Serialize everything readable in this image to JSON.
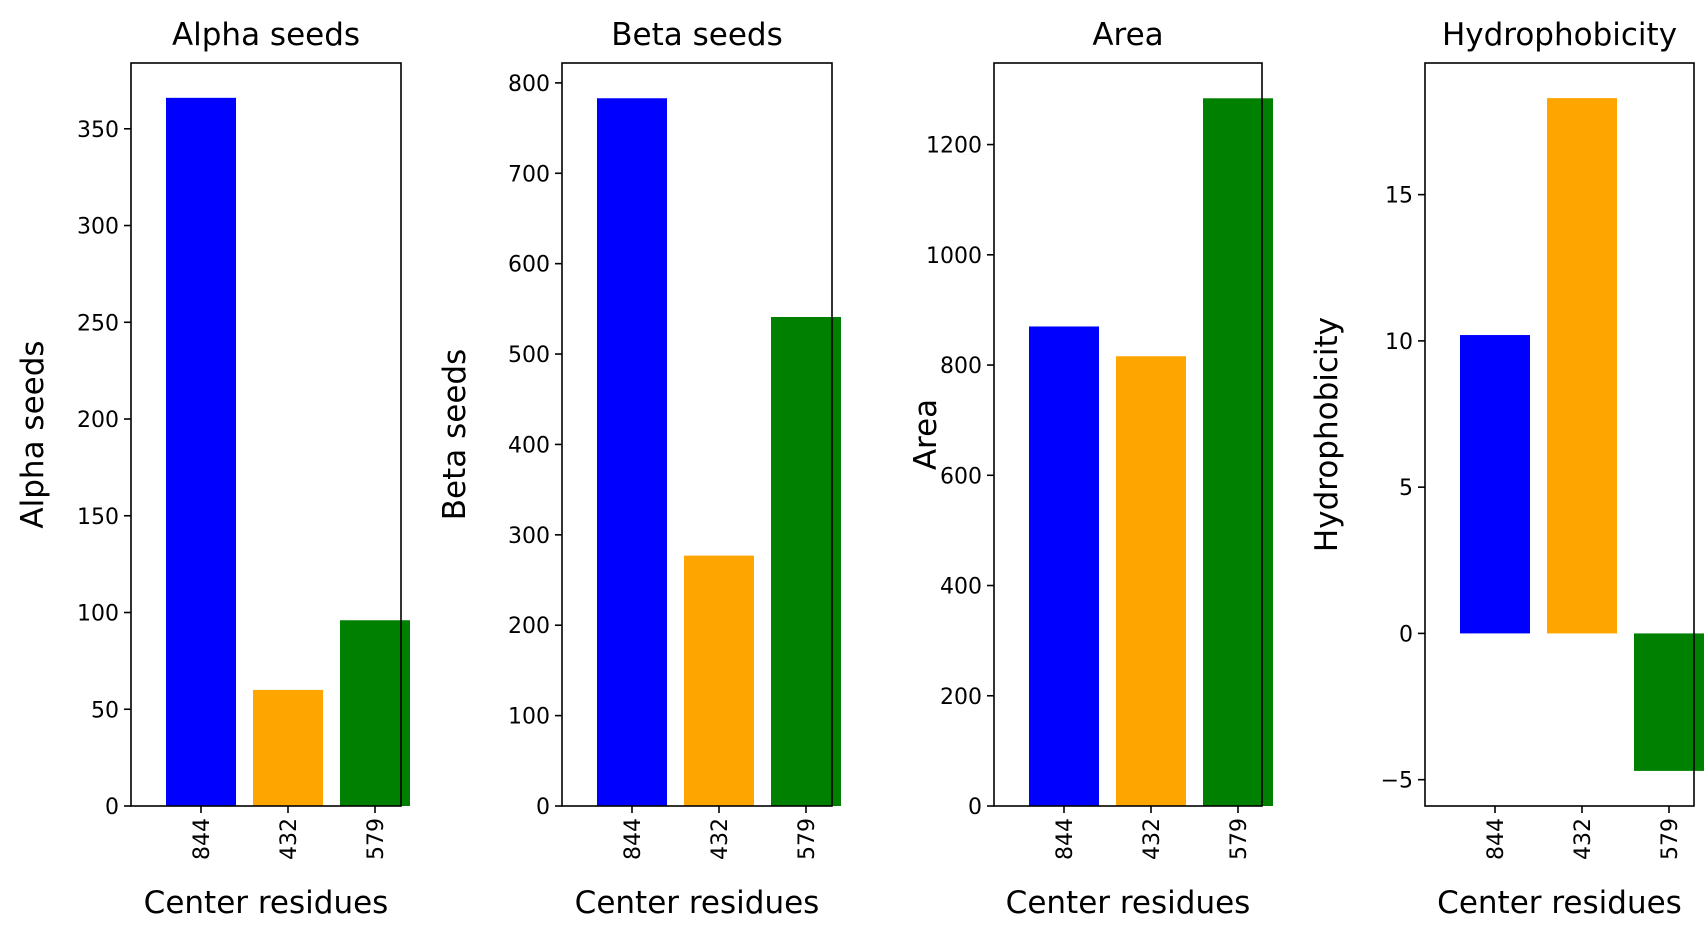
{
  "colors": [
    "#0000ff",
    "#ffa500",
    "#008000"
  ],
  "chart_data": [
    {
      "type": "bar",
      "title": "Alpha seeds",
      "xlabel": "Center residues",
      "ylabel": "Alpha seeds",
      "categories": [
        "844",
        "432",
        "579"
      ],
      "values": [
        366,
        60,
        96
      ],
      "ylim": [
        0,
        384
      ],
      "yticks": [
        0,
        50,
        100,
        150,
        200,
        250,
        300,
        350
      ],
      "ytick_labels": [
        "0",
        "50",
        "100",
        "150",
        "200",
        "250",
        "300",
        "350"
      ],
      "grid": false
    },
    {
      "type": "bar",
      "title": "Beta seeds",
      "xlabel": "Center residues",
      "ylabel": "Beta seeds",
      "categories": [
        "844",
        "432",
        "579"
      ],
      "values": [
        783,
        277,
        541
      ],
      "ylim": [
        0,
        822
      ],
      "yticks": [
        0,
        100,
        200,
        300,
        400,
        500,
        600,
        700,
        800
      ],
      "ytick_labels": [
        "0",
        "100",
        "200",
        "300",
        "400",
        "500",
        "600",
        "700",
        "800"
      ],
      "grid": false
    },
    {
      "type": "bar",
      "title": "Area",
      "xlabel": "Center residues",
      "ylabel": "Area",
      "categories": [
        "844",
        "432",
        "579"
      ],
      "values": [
        870,
        816,
        1284
      ],
      "ylim": [
        0,
        1348
      ],
      "yticks": [
        0,
        200,
        400,
        600,
        800,
        1000,
        1200
      ],
      "ytick_labels": [
        "0",
        "200",
        "400",
        "600",
        "800",
        "1000",
        "1200"
      ],
      "grid": false
    },
    {
      "type": "bar",
      "title": "Hydrophobicity",
      "xlabel": "Center residues",
      "ylabel": "Hydrophobicity",
      "categories": [
        "844",
        "432",
        "579"
      ],
      "values": [
        10.2,
        18.3,
        -4.7
      ],
      "ylim": [
        -5.9,
        19.5
      ],
      "yticks": [
        -5,
        0,
        5,
        10,
        15
      ],
      "ytick_labels": [
        "−5",
        "0",
        "5",
        "10",
        "15"
      ],
      "grid": false
    }
  ]
}
